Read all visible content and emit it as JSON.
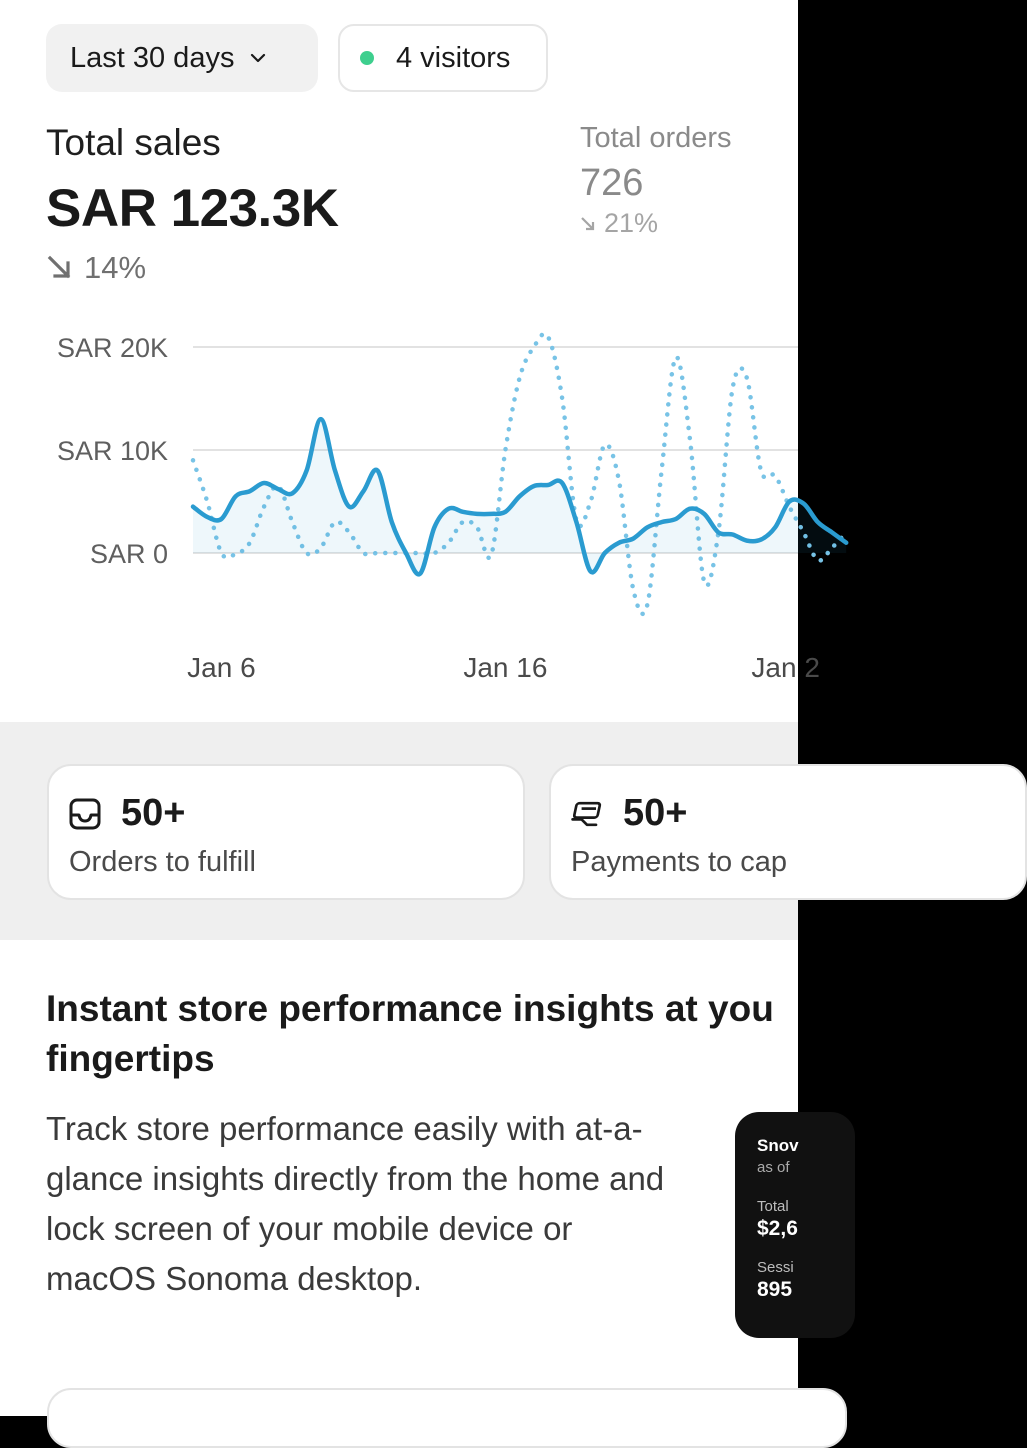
{
  "filters": {
    "date_range_label": "Last 30 days",
    "visitors_label": "4 visitors",
    "visitors_dot_color": "#3ecf8e"
  },
  "metrics": {
    "total_sales": {
      "label": "Total sales",
      "value": "SAR 123.3K",
      "change": "14%",
      "direction": "down"
    },
    "total_orders": {
      "label": "Total orders",
      "value": "726",
      "change": "21%",
      "direction": "down"
    }
  },
  "chart_data": {
    "type": "line",
    "y_ticks": [
      "SAR 20K",
      "SAR 10K",
      "SAR 0"
    ],
    "x_ticks": [
      "Jan 6",
      "Jan 16",
      "Jan 2"
    ],
    "ylim": [
      -4000,
      22000
    ],
    "x": [
      5,
      5.5,
      6,
      6.5,
      7,
      7.5,
      8,
      8.5,
      9,
      9.5,
      10,
      10.5,
      11,
      11.5,
      12,
      12.5,
      13,
      13.5,
      14,
      14.5,
      15,
      15.5,
      16,
      16.5,
      17,
      17.5,
      18,
      18.5,
      19,
      19.5,
      20,
      20.5,
      21,
      21.5,
      22,
      22.5,
      23,
      23.5,
      24,
      24.5,
      25,
      25.5,
      26,
      26.5,
      27,
      27.5,
      28
    ],
    "series": [
      {
        "style": "solid",
        "color": "#2a9bd0",
        "values": [
          4500,
          3500,
          3300,
          5500,
          6000,
          6800,
          6200,
          5800,
          8000,
          13000,
          8000,
          4500,
          6000,
          8000,
          3000,
          0,
          -2000,
          2500,
          4300,
          4000,
          3800,
          3800,
          4000,
          5500,
          6500,
          6600,
          6800,
          3000,
          -1800,
          0,
          1000,
          1400,
          2500,
          3000,
          3300,
          4300,
          3800,
          2000,
          1800,
          1200,
          1300,
          2500,
          5000,
          4800,
          3000,
          2000,
          1000
        ]
      },
      {
        "style": "dotted",
        "color": "#78c3e6",
        "values": [
          9000,
          5000,
          0,
          -100,
          1000,
          4500,
          6500,
          3000,
          0,
          500,
          3000,
          2000,
          0,
          0,
          0,
          0,
          0,
          0,
          1000,
          3000,
          2500,
          -200,
          10000,
          17000,
          20000,
          21000,
          15000,
          3200,
          5000,
          10500,
          7000,
          -3500,
          -5000,
          8000,
          19000,
          11000,
          -2800,
          2000,
          16000,
          17000,
          8000,
          7500,
          4500,
          2000,
          -700,
          500,
          2000
        ]
      }
    ]
  },
  "cards": [
    {
      "icon": "inbox-icon",
      "value": "50+",
      "label": "Orders to fulfill"
    },
    {
      "icon": "payment-icon",
      "value": "50+",
      "label": "Payments to cap"
    }
  ],
  "promo": {
    "title_line1": "Instant store performance insights at you",
    "title_line2": "fingertips",
    "body": "Track store performance easily with at-a-glance insights directly from the home and lock screen of your mobile device or macOS Sonoma desktop."
  },
  "widget": {
    "title": "Snov",
    "subtitle": "as of",
    "total_label": "Total",
    "total_value": "$2,6",
    "sessions_label": "Sessi",
    "sessions_value": "895"
  }
}
